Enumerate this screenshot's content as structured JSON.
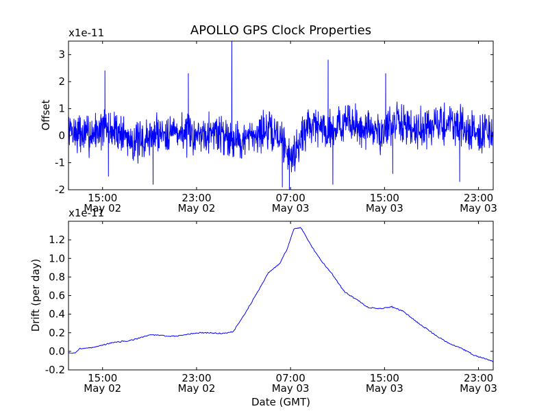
{
  "chart_data": [
    {
      "type": "line",
      "title": "APOLLO GPS Clock Properties",
      "ylabel": "Offset",
      "xlabel": "",
      "y_scale_label": "x1e-11",
      "ylim": [
        -2,
        3.5
      ],
      "xlim_hours_from_start": [
        0,
        36.15
      ],
      "y_ticks": [
        -2,
        -1,
        0,
        1,
        2,
        3
      ],
      "y_tick_labels": [
        "-2",
        "-1",
        "0",
        "1",
        "2",
        "3"
      ],
      "x_ticks": [
        {
          "hours": 2.9,
          "label1": "15:00",
          "label2": "May 02"
        },
        {
          "hours": 10.9,
          "label1": "23:00",
          "label2": "May 02"
        },
        {
          "hours": 18.9,
          "label1": "07:00",
          "label2": "May 03"
        },
        {
          "hours": 26.9,
          "label1": "15:00",
          "label2": "May 03"
        },
        {
          "hours": 34.9,
          "label1": "23:00",
          "label2": "May 03"
        }
      ],
      "series": [
        {
          "name": "Offset",
          "color": "#0000ff",
          "noise_level": 0.45,
          "noise_seed": 7,
          "x": [
            0,
            1.5,
            3.0,
            4.5,
            6.0,
            7.5,
            9.0,
            10.5,
            12.0,
            13.5,
            15.0,
            16.5,
            18.0,
            19.0,
            20.5,
            22.0,
            23.5,
            25.0,
            26.5,
            28.0,
            29.5,
            31.0,
            32.5,
            34.0,
            35.5,
            36.15
          ],
          "values": [
            0.2,
            0.0,
            0.3,
            0.1,
            -0.3,
            0.1,
            0.2,
            0.0,
            0.2,
            0.0,
            -0.2,
            0.2,
            0.0,
            -0.8,
            0.5,
            0.2,
            0.5,
            0.3,
            0.1,
            0.5,
            0.3,
            0.3,
            0.5,
            0.2,
            0.1,
            0.2
          ],
          "spikes": [
            {
              "x": 3.1,
              "y": 2.4
            },
            {
              "x": 3.4,
              "y": -1.5
            },
            {
              "x": 7.2,
              "y": -1.8
            },
            {
              "x": 10.2,
              "y": 2.3
            },
            {
              "x": 13.9,
              "y": 3.5
            },
            {
              "x": 18.2,
              "y": -1.9
            },
            {
              "x": 18.8,
              "y": -2.0
            },
            {
              "x": 22.1,
              "y": 2.8
            },
            {
              "x": 22.5,
              "y": -1.8
            },
            {
              "x": 27.0,
              "y": 2.3
            },
            {
              "x": 27.6,
              "y": -1.4
            },
            {
              "x": 33.3,
              "y": -1.7
            }
          ]
        }
      ]
    },
    {
      "type": "line",
      "title": "",
      "ylabel": "Drift (per day)",
      "xlabel": "Date (GMT)",
      "y_scale_label": "x1e-11",
      "ylim": [
        -0.2,
        1.4
      ],
      "xlim_hours_from_start": [
        0,
        36.15
      ],
      "y_ticks": [
        -0.2,
        0.0,
        0.2,
        0.4,
        0.6,
        0.8,
        1.0,
        1.2
      ],
      "y_tick_labels": [
        "-0.2",
        "0.0",
        "0.2",
        "0.4",
        "0.6",
        "0.8",
        "1.0",
        "1.2"
      ],
      "x_ticks": [
        {
          "hours": 2.9,
          "label1": "15:00",
          "label2": "May 02"
        },
        {
          "hours": 10.9,
          "label1": "23:00",
          "label2": "May 02"
        },
        {
          "hours": 18.9,
          "label1": "07:00",
          "label2": "May 03"
        },
        {
          "hours": 26.9,
          "label1": "15:00",
          "label2": "May 03"
        },
        {
          "hours": 34.9,
          "label1": "23:00",
          "label2": "May 03"
        }
      ],
      "series": [
        {
          "name": "Drift",
          "color": "#0000ff",
          "noise_level": 0.004,
          "noise_seed": 3,
          "x": [
            0,
            0.5,
            1.0,
            2.0,
            3.0,
            4.0,
            5.0,
            6.0,
            7.0,
            8.0,
            9.0,
            10.0,
            11.0,
            12.0,
            13.0,
            14.0,
            15.0,
            16.0,
            17.0,
            18.0,
            18.6,
            19.2,
            19.8,
            20.6,
            21.5,
            22.5,
            23.5,
            24.5,
            25.5,
            26.5,
            27.5,
            28.5,
            29.5,
            30.5,
            31.5,
            32.5,
            33.5,
            34.5,
            35.5,
            36.15
          ],
          "values": [
            -0.02,
            -0.02,
            0.03,
            0.04,
            0.07,
            0.1,
            0.11,
            0.14,
            0.18,
            0.17,
            0.16,
            0.18,
            0.2,
            0.2,
            0.19,
            0.21,
            0.4,
            0.62,
            0.84,
            0.95,
            1.1,
            1.32,
            1.33,
            1.15,
            0.98,
            0.82,
            0.64,
            0.56,
            0.47,
            0.46,
            0.48,
            0.43,
            0.33,
            0.24,
            0.15,
            0.08,
            0.03,
            -0.04,
            -0.08,
            -0.11
          ]
        }
      ]
    }
  ]
}
